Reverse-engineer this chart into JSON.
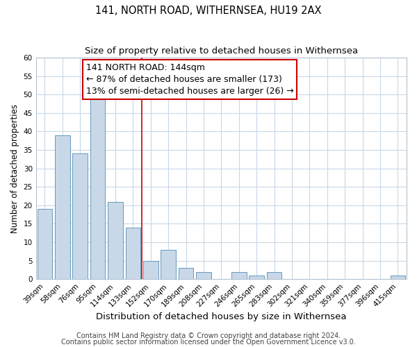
{
  "title": "141, NORTH ROAD, WITHERNSEA, HU19 2AX",
  "subtitle": "Size of property relative to detached houses in Withernsea",
  "xlabel": "Distribution of detached houses by size in Withernsea",
  "ylabel": "Number of detached properties",
  "bar_labels": [
    "39sqm",
    "58sqm",
    "76sqm",
    "95sqm",
    "114sqm",
    "133sqm",
    "152sqm",
    "170sqm",
    "189sqm",
    "208sqm",
    "227sqm",
    "246sqm",
    "265sqm",
    "283sqm",
    "302sqm",
    "321sqm",
    "340sqm",
    "359sqm",
    "377sqm",
    "396sqm",
    "415sqm"
  ],
  "bar_values": [
    19,
    39,
    34,
    49,
    21,
    14,
    5,
    8,
    3,
    2,
    0,
    2,
    1,
    2,
    0,
    0,
    0,
    0,
    0,
    0,
    1
  ],
  "bar_color": "#c8d8e8",
  "bar_edge_color": "#6699bb",
  "ylim": [
    0,
    60
  ],
  "yticks": [
    0,
    5,
    10,
    15,
    20,
    25,
    30,
    35,
    40,
    45,
    50,
    55,
    60
  ],
  "property_line_x": 5.5,
  "property_line_color": "#cc0000",
  "annotation_title": "141 NORTH ROAD: 144sqm",
  "annotation_line1": "← 87% of detached houses are smaller (173)",
  "annotation_line2": "13% of semi-detached houses are larger (26) →",
  "footer_line1": "Contains HM Land Registry data © Crown copyright and database right 2024.",
  "footer_line2": "Contains public sector information licensed under the Open Government Licence v3.0.",
  "bg_color": "#ffffff",
  "grid_color": "#c8d8e8",
  "title_fontsize": 10.5,
  "subtitle_fontsize": 9.5,
  "xlabel_fontsize": 9.5,
  "ylabel_fontsize": 8.5,
  "tick_fontsize": 7.5,
  "annotation_fontsize": 9,
  "footer_fontsize": 7
}
